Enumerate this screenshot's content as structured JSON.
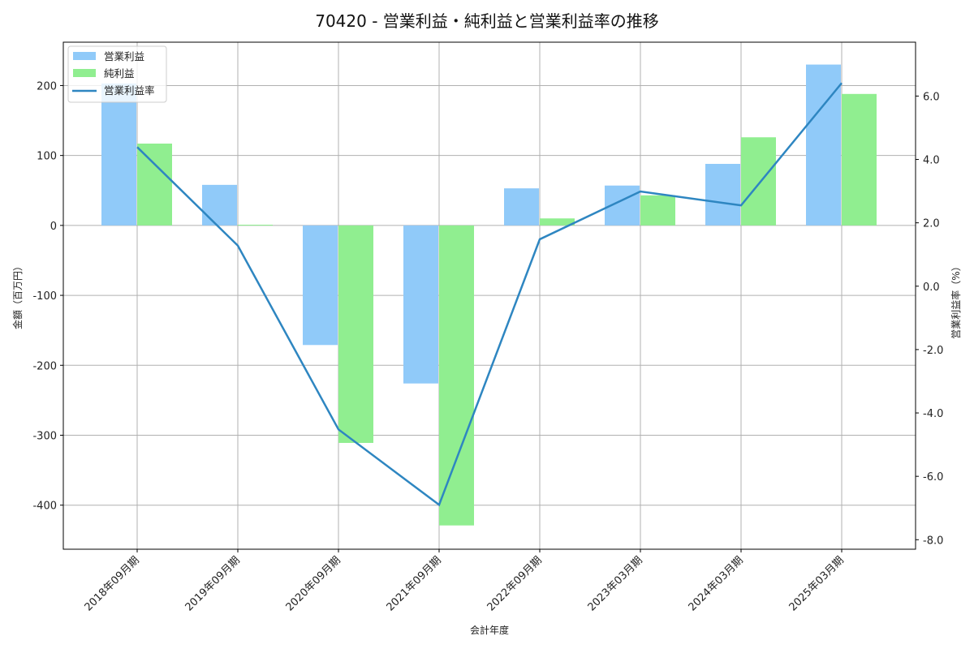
{
  "chart_data": {
    "type": "bar",
    "title": "70420 - 営業利益・純利益と営業利益率の推移",
    "xlabel": "会計年度",
    "ylabel": "金額（百万円）",
    "y2label": "営業利益率（%）",
    "categories": [
      "2018年09月期",
      "2019年09月期",
      "2020年09月期",
      "2021年09月期",
      "2022年09月期",
      "2023年03月期",
      "2024年03月期",
      "2025年03月期"
    ],
    "series": [
      {
        "name": "営業利益",
        "kind": "bar",
        "axis": "left",
        "color": "#90caf9",
        "values": [
          203,
          58,
          -171,
          -226,
          53,
          57,
          88,
          230
        ]
      },
      {
        "name": "純利益",
        "kind": "bar",
        "axis": "left",
        "color": "#90ee90",
        "values": [
          117,
          1,
          -311,
          -429,
          10,
          43,
          126,
          188
        ]
      },
      {
        "name": "営業利益率",
        "kind": "line",
        "axis": "right",
        "color": "#2e86c1",
        "values": [
          4.39,
          1.28,
          -4.52,
          -6.9,
          1.48,
          2.99,
          2.55,
          6.41
        ]
      }
    ],
    "ylim": [
      -463,
      262
    ],
    "y2lim": [
      -8.3,
      7.7
    ],
    "yticks": [
      -400,
      -300,
      -200,
      -100,
      0,
      100,
      200
    ],
    "y2ticks": [
      "-8.0",
      "-6.0",
      "-4.0",
      "-2.0",
      "0.0",
      "2.0",
      "4.0",
      "6.0"
    ],
    "grid": true,
    "legend_position": "upper left"
  }
}
